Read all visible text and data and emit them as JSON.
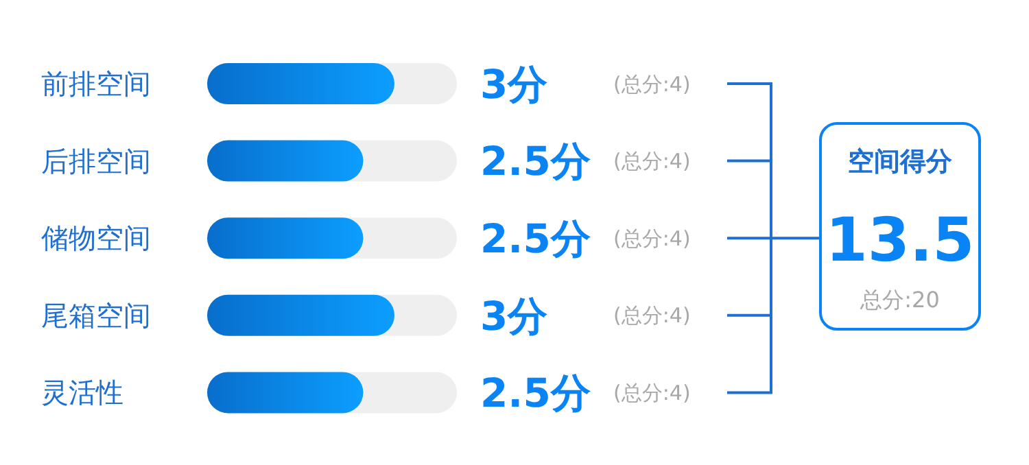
{
  "chart_data": {
    "type": "bar",
    "orientation": "horizontal",
    "categories": [
      "前排空间",
      "后排空间",
      "储物空间",
      "尾箱空间",
      "灵活性"
    ],
    "values": [
      3,
      2.5,
      2.5,
      3,
      2.5
    ],
    "value_labels": [
      "3分",
      "2.5分",
      "2.5分",
      "3分",
      "2.5分"
    ],
    "color": "#0a84f4",
    "xlim": [
      0,
      4
    ],
    "tick_labels": "y",
    "annotations": [
      "(总分:4)",
      "(总分:4)",
      "(总分:4)",
      "(总分:4)",
      "(总分:4)",
      "空间得分",
      "13.5",
      "总分:20"
    ]
  }
}
